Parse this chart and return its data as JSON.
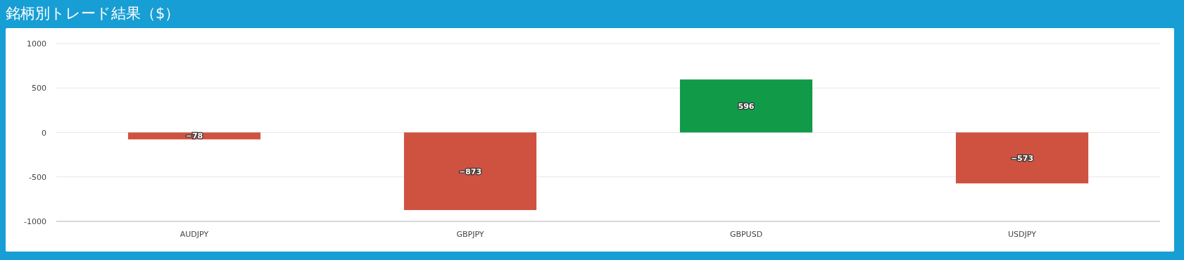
{
  "chart_data": {
    "type": "bar",
    "title": "銘柄別トレード結果（$）",
    "categories": [
      "AUDJPY",
      "GBPJPY",
      "GBPUSD",
      "USDJPY"
    ],
    "values": [
      -78,
      -873,
      596,
      -573
    ],
    "colors": [
      "#cf5240",
      "#cf5240",
      "#119a48",
      "#cf5240"
    ],
    "ylim": [
      -1000,
      1000
    ],
    "yticks": [
      -1000,
      -500,
      0,
      500,
      1000
    ],
    "grid": "y",
    "data_labels": true
  }
}
